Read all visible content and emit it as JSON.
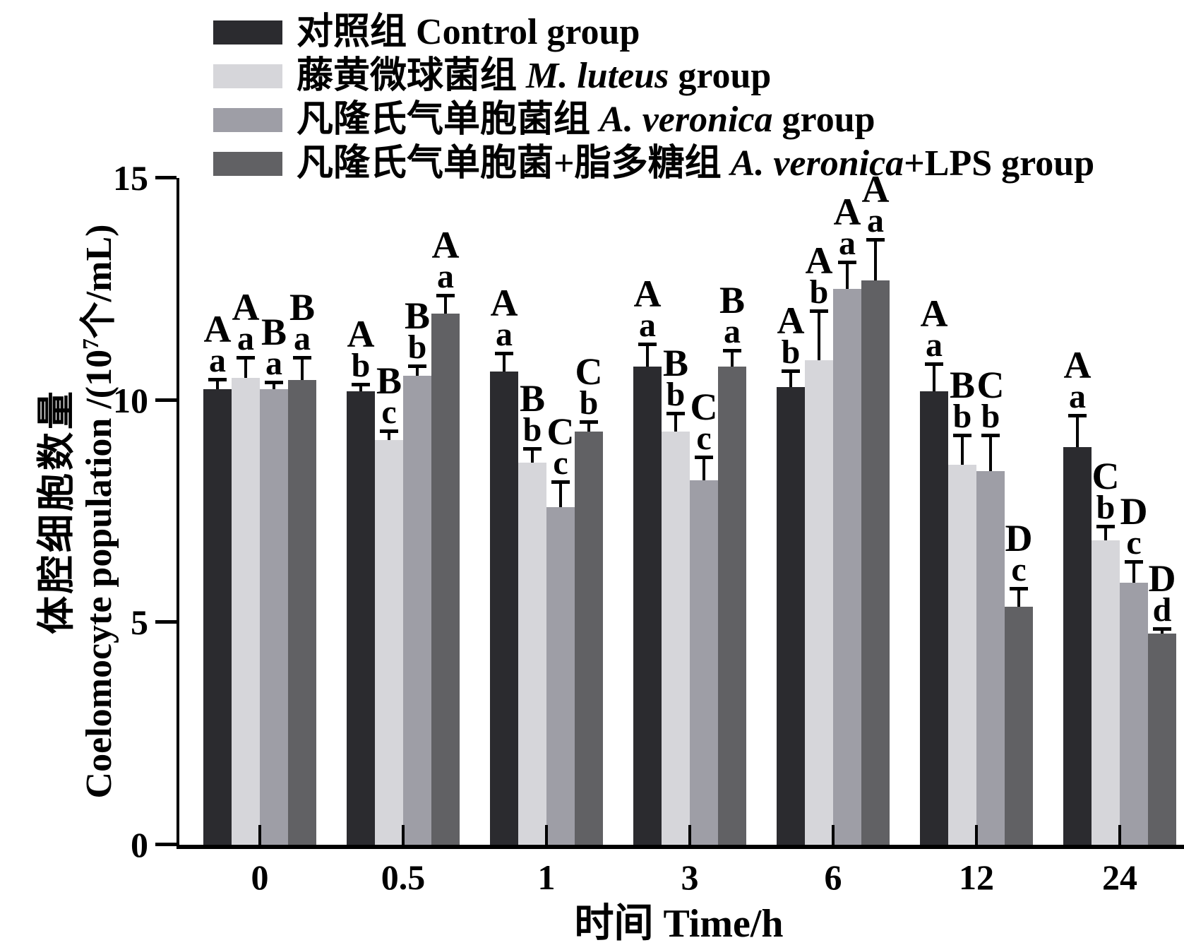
{
  "legend": {
    "items": [
      {
        "zh": "对照组",
        "species": "",
        "rest": "Control group",
        "color": "#2b2b2f"
      },
      {
        "zh": "藤黄微球菌组",
        "species": "M. luteus",
        "rest": "group",
        "color": "#d6d6da"
      },
      {
        "zh": "凡隆氏气单胞菌组",
        "species": "A. veronica",
        "rest": "group",
        "color": "#9e9ea6"
      },
      {
        "zh": "凡隆氏气单胞菌+脂多糖组",
        "species": "A. veronica",
        "rest": "+LPS group",
        "color": "#616164"
      }
    ]
  },
  "axes": {
    "y_label_zh": "体腔细胞数量",
    "y_label_en_prefix": "Coelomocyte population /(10",
    "y_label_sup": "7",
    "y_label_en_suffix": "个/mL)",
    "x_label": "时间 Time/h"
  },
  "chart_data": {
    "type": "bar",
    "title": "",
    "xlabel": "时间 Time/h",
    "ylabel": "体腔细胞数量 Coelomocyte population /(10^7个/mL)",
    "categories": [
      "0",
      "0.5",
      "1",
      "3",
      "6",
      "12",
      "24"
    ],
    "ylim": [
      0,
      15
    ],
    "yticks": [
      0,
      5,
      10,
      15
    ],
    "grid": false,
    "legend_position": "top-left",
    "error_bars": true,
    "series": [
      {
        "name": "对照组 Control group",
        "color": "#2b2b2f",
        "values": [
          10.25,
          10.2,
          10.65,
          10.75,
          10.3,
          10.2,
          8.95
        ],
        "errors": [
          0.2,
          0.15,
          0.4,
          0.5,
          0.35,
          0.6,
          0.7
        ],
        "letters": [
          "Aa",
          "Ab",
          "Aa",
          "Aa",
          "Ab",
          "Aa",
          "Aa"
        ]
      },
      {
        "name": "藤黄微球菌组 M. luteus group",
        "color": "#d6d6da",
        "values": [
          10.5,
          9.1,
          8.6,
          9.3,
          10.9,
          8.55,
          6.85
        ],
        "errors": [
          0.45,
          0.2,
          0.3,
          0.4,
          1.1,
          0.65,
          0.3
        ],
        "letters": [
          "Aa",
          "Bc",
          "Bb",
          "Bb",
          "Ab",
          "Bb",
          "Cb"
        ]
      },
      {
        "name": "凡隆氏气单胞菌组 A. veronica group",
        "color": "#9e9ea6",
        "values": [
          10.25,
          10.55,
          7.6,
          8.2,
          12.5,
          8.4,
          5.9
        ],
        "errors": [
          0.15,
          0.2,
          0.55,
          0.5,
          0.6,
          0.8,
          0.45
        ],
        "letters": [
          "Ba",
          "Bb",
          "Cc",
          "Cc",
          "Aa",
          "Cb",
          "Dc"
        ]
      },
      {
        "name": "凡隆氏气单胞菌+脂多糖组 A. veronica+LPS group",
        "color": "#616164",
        "values": [
          10.45,
          11.95,
          9.3,
          10.75,
          12.7,
          5.35,
          4.75
        ],
        "errors": [
          0.5,
          0.4,
          0.2,
          0.35,
          0.9,
          0.4,
          0.1
        ],
        "letters": [
          "Ba",
          "Aa",
          "Cb",
          "Ba",
          "Aa",
          "Dc",
          "Dd"
        ]
      }
    ]
  }
}
